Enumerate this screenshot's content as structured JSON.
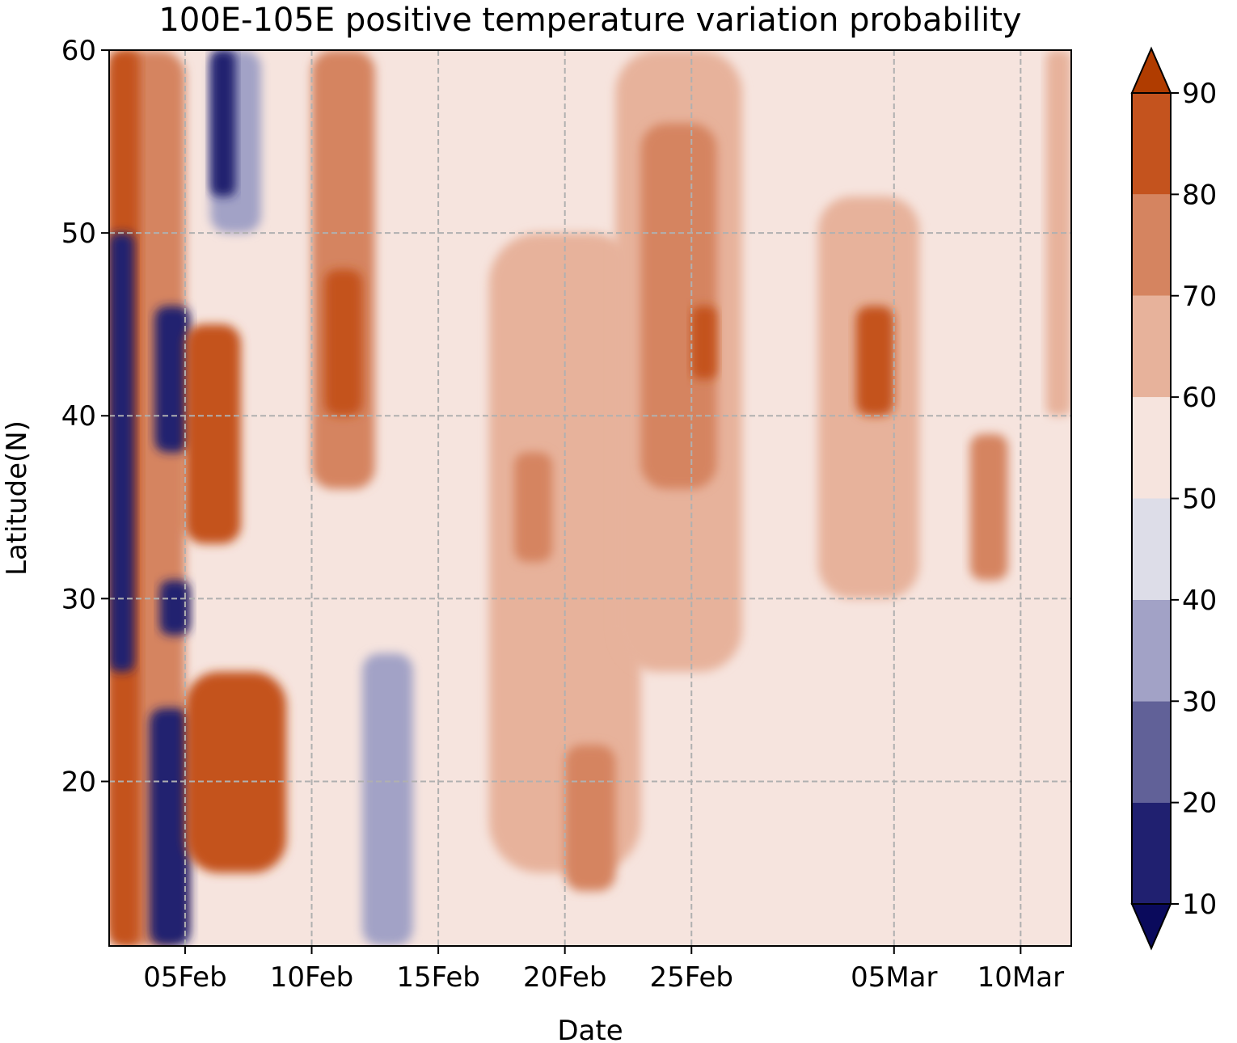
{
  "chart_data": {
    "type": "heatmap",
    "subtype": "filled-contour",
    "title": "100E-105E positive temperature variation probability",
    "xlabel": "Date",
    "ylabel": "Latitude(N)",
    "x_ticks": [
      "05Feb",
      "10Feb",
      "15Feb",
      "20Feb",
      "25Feb",
      "05Mar",
      "10Mar"
    ],
    "x_tick_days": [
      5,
      10,
      15,
      20,
      25,
      33,
      38
    ],
    "xlim_days": [
      2,
      40
    ],
    "y_ticks": [
      20,
      30,
      40,
      50,
      60
    ],
    "ylim": [
      11,
      60
    ],
    "grid": true,
    "colorbar": {
      "levels": [
        10,
        20,
        30,
        40,
        50,
        60,
        70,
        80,
        90
      ],
      "tick_labels": [
        "10",
        "20",
        "30",
        "40",
        "50",
        "60",
        "70",
        "80",
        "90"
      ],
      "colors": [
        "#0a0a5c",
        "#202070",
        "#616198",
        "#a2a2c6",
        "#dddde8",
        "#f6e4de",
        "#e7b29b",
        "#d58460",
        "#c4531e",
        "#b03c00"
      ],
      "extend": "both"
    },
    "bands": [
      {
        "day_start": 2,
        "day_end": 5,
        "lat_min": 11,
        "lat_max": 60,
        "value": 72
      },
      {
        "day_start": 2,
        "day_end": 3.2,
        "lat_min": 11,
        "lat_max": 60,
        "value": 86
      },
      {
        "day_start": 2,
        "day_end": 3,
        "lat_min": 26,
        "lat_max": 50,
        "value": 15
      },
      {
        "day_start": 3.8,
        "day_end": 5.2,
        "lat_min": 38,
        "lat_max": 46,
        "value": 12
      },
      {
        "day_start": 3.6,
        "day_end": 5.2,
        "lat_min": 11,
        "lat_max": 24,
        "value": 15
      },
      {
        "day_start": 4,
        "day_end": 5.2,
        "lat_min": 28,
        "lat_max": 31,
        "value": 12
      },
      {
        "day_start": 5,
        "day_end": 7.2,
        "lat_min": 33,
        "lat_max": 45,
        "value": 85
      },
      {
        "day_start": 5,
        "day_end": 9,
        "lat_min": 15,
        "lat_max": 26,
        "value": 84
      },
      {
        "day_start": 6,
        "day_end": 8,
        "lat_min": 50,
        "lat_max": 60,
        "value": 35
      },
      {
        "day_start": 6,
        "day_end": 7,
        "lat_min": 52,
        "lat_max": 60,
        "value": 15
      },
      {
        "day_start": 10,
        "day_end": 12.5,
        "lat_min": 36,
        "lat_max": 60,
        "value": 72
      },
      {
        "day_start": 10.5,
        "day_end": 12,
        "lat_min": 40,
        "lat_max": 48,
        "value": 84
      },
      {
        "day_start": 12,
        "day_end": 14,
        "lat_min": 11,
        "lat_max": 27,
        "value": 35
      },
      {
        "day_start": 17,
        "day_end": 23,
        "lat_min": 15,
        "lat_max": 50,
        "value": 64
      },
      {
        "day_start": 18,
        "day_end": 19.5,
        "lat_min": 32,
        "lat_max": 38,
        "value": 74
      },
      {
        "day_start": 20,
        "day_end": 22,
        "lat_min": 14,
        "lat_max": 22,
        "value": 74
      },
      {
        "day_start": 22,
        "day_end": 27,
        "lat_min": 26,
        "lat_max": 60,
        "value": 68
      },
      {
        "day_start": 23,
        "day_end": 26,
        "lat_min": 36,
        "lat_max": 56,
        "value": 76
      },
      {
        "day_start": 25,
        "day_end": 26,
        "lat_min": 42,
        "lat_max": 46,
        "value": 84
      },
      {
        "day_start": 30,
        "day_end": 34,
        "lat_min": 30,
        "lat_max": 52,
        "value": 68
      },
      {
        "day_start": 31.5,
        "day_end": 33,
        "lat_min": 40,
        "lat_max": 46,
        "value": 84
      },
      {
        "day_start": 36,
        "day_end": 37.5,
        "lat_min": 31,
        "lat_max": 39,
        "value": 76
      },
      {
        "day_start": 39,
        "day_end": 40,
        "lat_min": 40,
        "lat_max": 60,
        "value": 64
      }
    ]
  }
}
